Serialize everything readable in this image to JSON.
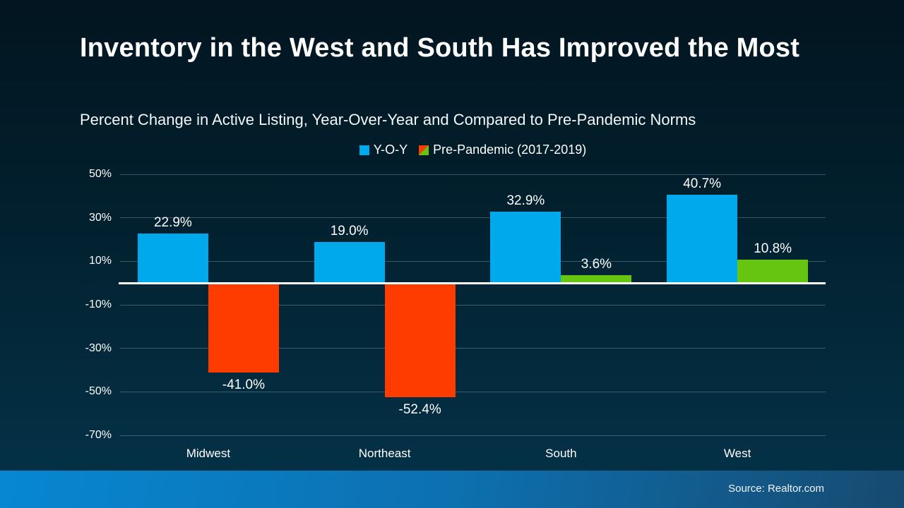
{
  "header": {
    "title": "Inventory in the West and South Has Improved the Most",
    "subtitle": "Percent Change in Active Listing, Year-Over-Year and Compared to Pre-Pandemic Norms"
  },
  "chart_data": {
    "type": "bar",
    "categories": [
      "Midwest",
      "Northeast",
      "South",
      "West"
    ],
    "series": [
      {
        "name": "Y-O-Y",
        "values": [
          22.9,
          19.0,
          32.9,
          40.7
        ],
        "color": "#00a9ec"
      },
      {
        "name": "Pre-Pandemic (2017-2019)",
        "values": [
          -41.0,
          -52.4,
          3.6,
          10.8
        ],
        "color_positive": "#66c511",
        "color_negative": "#fe3c00"
      }
    ],
    "value_labels": [
      [
        "22.9%",
        "19.0%",
        "32.9%",
        "40.7%"
      ],
      [
        "-41.0%",
        "-52.4%",
        "3.6%",
        "10.8%"
      ]
    ],
    "y_ticks": [
      50,
      30,
      10,
      -10,
      -30,
      -50,
      -70
    ],
    "y_tick_labels": [
      "50%",
      "30%",
      "10%",
      "-10%",
      "-30%",
      "-50%",
      "-70%"
    ],
    "ylim": [
      -70,
      50
    ],
    "grid": true,
    "legend_position": "top",
    "zero_line": true
  },
  "colors": {
    "bar_blue": "#00a9ec",
    "bar_green": "#66c511",
    "bar_red": "#fe3c00",
    "background_top": "#021520",
    "background_bottom": "#05334a",
    "footer_gradient_left": "#0787d2",
    "footer_gradient_right": "#174a70",
    "gridline": "#96afbe",
    "zero_line": "#ffffff"
  },
  "footer": {
    "source": "Source: Realtor.com"
  }
}
